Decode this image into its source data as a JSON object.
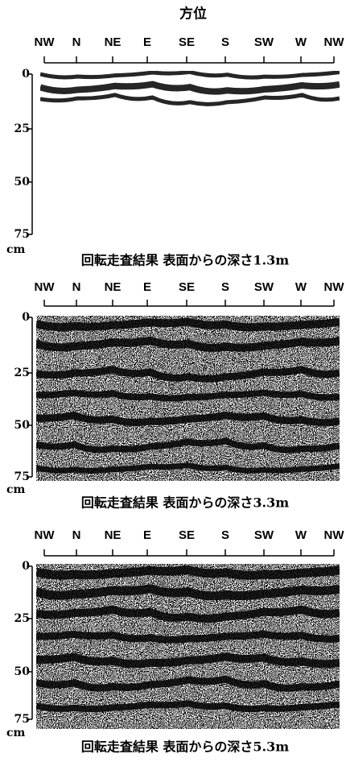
{
  "title": "方位",
  "panels": [
    {
      "directions": [
        "NW",
        "N",
        "NE",
        "E",
        "SE",
        "S",
        "SW",
        "W",
        "NW"
      ],
      "depths": [
        "0",
        "25",
        "50",
        "75"
      ],
      "unit": "cm",
      "caption": "回転走査結果 表面からの深さ1.3m"
    },
    {
      "directions": [
        "NW",
        "N",
        "NE",
        "E",
        "SE",
        "S",
        "SW",
        "W",
        "NW"
      ],
      "depths": [
        "0",
        "25",
        "50",
        "75"
      ],
      "unit": "cm",
      "caption": "回転走査結果 表面からの深さ3.3m"
    },
    {
      "directions": [
        "NW",
        "N",
        "NE",
        "E",
        "SE",
        "S",
        "SW",
        "W",
        "NW"
      ],
      "depths": [
        "0",
        "25",
        "50",
        "75"
      ],
      "unit": "cm",
      "caption": "回転走査結果 表面からの深さ5.3m"
    }
  ]
}
